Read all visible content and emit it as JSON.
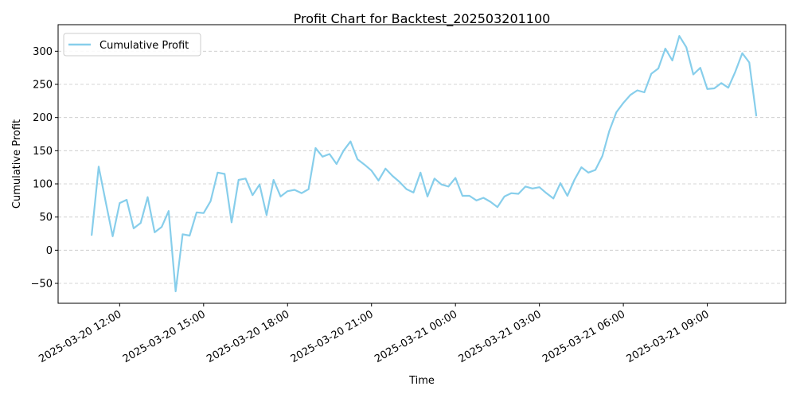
{
  "chart_data": {
    "type": "line",
    "title": "Profit Chart for Backtest_202503201100",
    "xlabel": "Time",
    "ylabel": "Cumulative Profit",
    "x_range_hours": [
      9.8,
      35.8
    ],
    "ylim": [
      -80,
      340
    ],
    "grid": {
      "y": true,
      "x": false,
      "style": "dashed"
    },
    "legend_position": "top-left",
    "x_ticks": [
      {
        "hours": 12,
        "label": "2025-03-20 12:00"
      },
      {
        "hours": 15,
        "label": "2025-03-20 15:00"
      },
      {
        "hours": 18,
        "label": "2025-03-20 18:00"
      },
      {
        "hours": 21,
        "label": "2025-03-20 21:00"
      },
      {
        "hours": 24,
        "label": "2025-03-21 00:00"
      },
      {
        "hours": 27,
        "label": "2025-03-21 03:00"
      },
      {
        "hours": 30,
        "label": "2025-03-21 06:00"
      },
      {
        "hours": 33,
        "label": "2025-03-21 09:00"
      }
    ],
    "y_ticks": [
      {
        "value": -50,
        "label": "−50"
      },
      {
        "value": 0,
        "label": "0"
      },
      {
        "value": 50,
        "label": "50"
      },
      {
        "value": 100,
        "label": "100"
      },
      {
        "value": 150,
        "label": "150"
      },
      {
        "value": 200,
        "label": "200"
      },
      {
        "value": 250,
        "label": "250"
      },
      {
        "value": 300,
        "label": "300"
      }
    ],
    "series": [
      {
        "name": "Cumulative Profit",
        "color": "#87ceeb",
        "x_hours": [
          11.0,
          11.25,
          11.5,
          11.75,
          12.0,
          12.25,
          12.5,
          12.75,
          13.0,
          13.25,
          13.5,
          13.75,
          14.0,
          14.25,
          14.5,
          14.75,
          15.0,
          15.25,
          15.5,
          15.75,
          16.0,
          16.25,
          16.5,
          16.75,
          17.0,
          17.25,
          17.5,
          17.75,
          18.0,
          18.25,
          18.5,
          18.75,
          19.0,
          19.25,
          19.5,
          19.75,
          20.0,
          20.25,
          20.5,
          20.75,
          21.0,
          21.25,
          21.5,
          21.75,
          22.0,
          22.25,
          22.5,
          22.75,
          23.0,
          23.25,
          23.5,
          23.75,
          24.0,
          24.25,
          24.5,
          24.75,
          25.0,
          25.25,
          25.5,
          25.75,
          26.0,
          26.25,
          26.5,
          26.75,
          27.0,
          27.25,
          27.5,
          27.75,
          28.0,
          28.25,
          28.5,
          28.75,
          29.0,
          29.25,
          29.5,
          29.75,
          30.0,
          30.25,
          30.5,
          30.75,
          31.0,
          31.25,
          31.5,
          31.75,
          32.0,
          32.25,
          32.5,
          32.75,
          33.0,
          33.25,
          33.5,
          33.75,
          34.0,
          34.25,
          34.5,
          34.75
        ],
        "values": [
          23,
          126,
          73,
          21,
          71,
          76,
          33,
          41,
          80,
          27,
          35,
          59,
          -62,
          24,
          22,
          57,
          56,
          74,
          117,
          115,
          42,
          106,
          108,
          83,
          99,
          53,
          106,
          81,
          89,
          91,
          86,
          92,
          154,
          141,
          145,
          130,
          150,
          164,
          137,
          129,
          120,
          105,
          123,
          112,
          103,
          92,
          87,
          117,
          81,
          108,
          99,
          96,
          109,
          82,
          82,
          75,
          79,
          73,
          65,
          81,
          86,
          85,
          96,
          93,
          95,
          86,
          78,
          101,
          82,
          106,
          125,
          117,
          121,
          142,
          180,
          208,
          222,
          234,
          241,
          238,
          266,
          274,
          304,
          286,
          323,
          306,
          265,
          275,
          243,
          244,
          252,
          245,
          269,
          297,
          283,
          203
        ]
      }
    ]
  }
}
